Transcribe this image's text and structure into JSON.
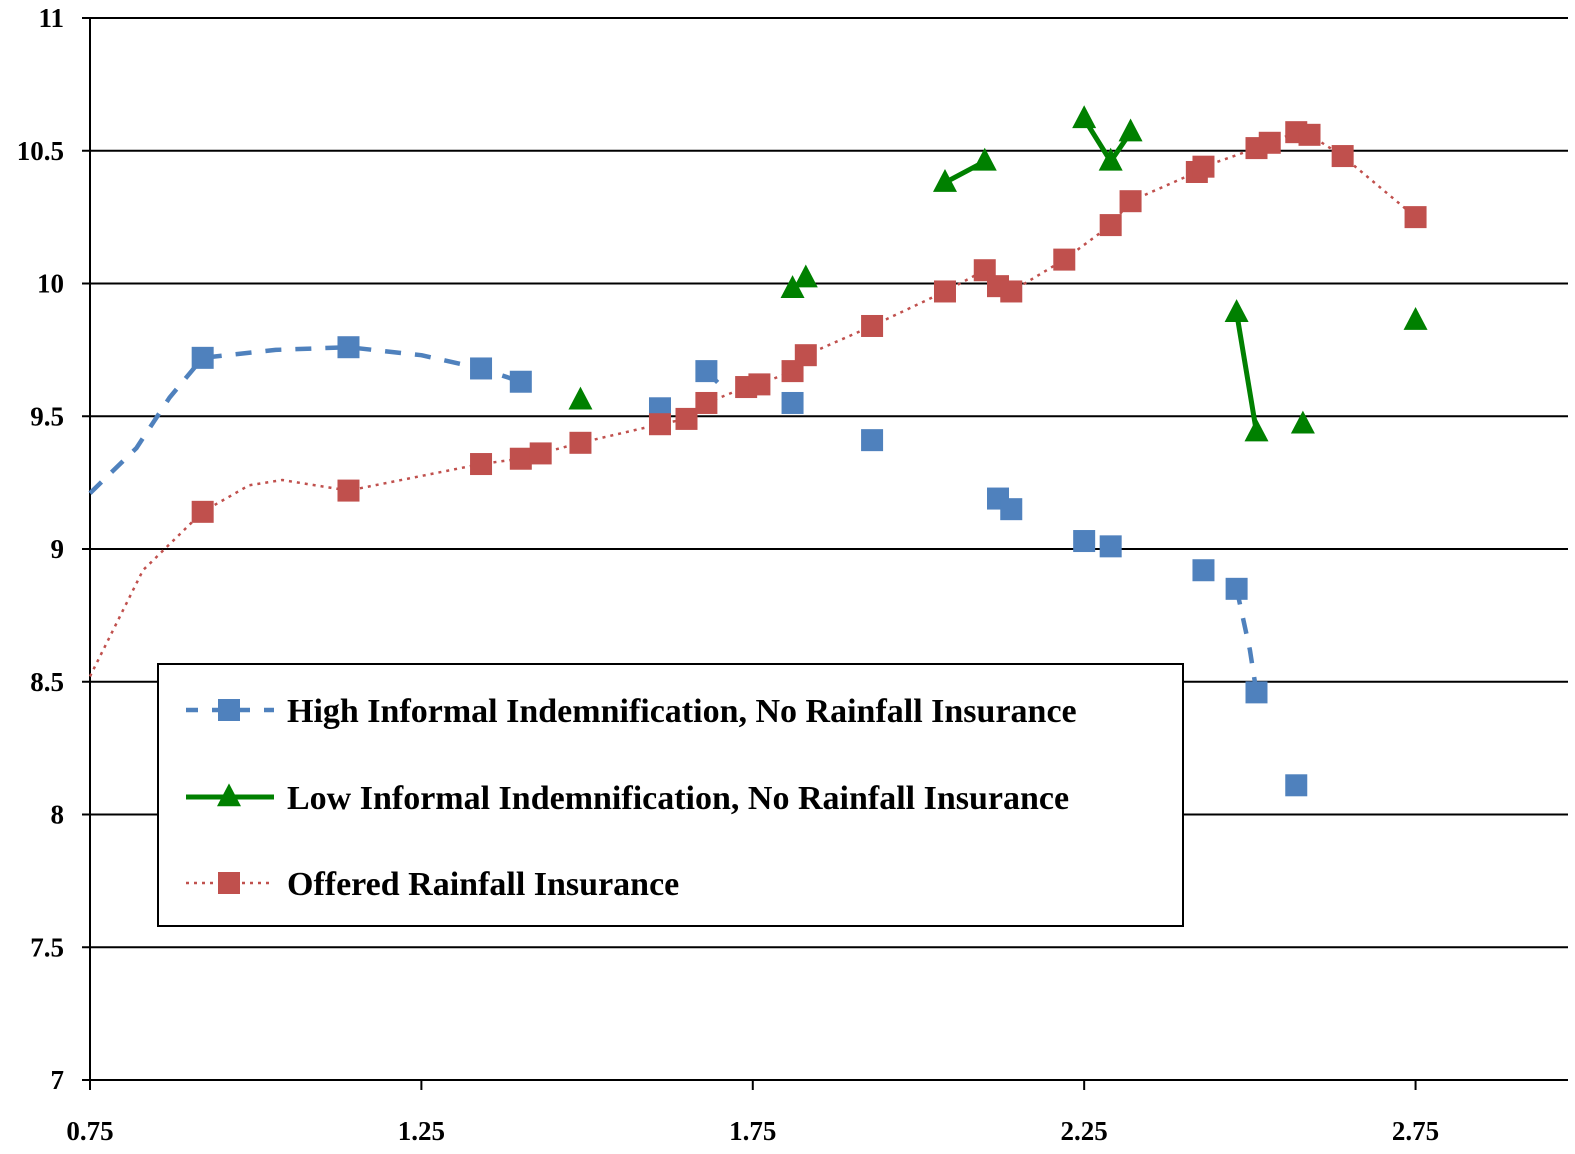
{
  "chart_data": {
    "type": "scatter",
    "title": "",
    "xlabel": "",
    "ylabel": "",
    "xlim": [
      0.75,
      2.98
    ],
    "ylim": [
      7,
      11
    ],
    "x_ticks": [
      0.75,
      1.25,
      1.75,
      2.25,
      2.75
    ],
    "x_tick_labels": [
      "0.75",
      "1.25",
      "1.75",
      "2.25",
      "2.75"
    ],
    "y_ticks": [
      7,
      7.5,
      8,
      8.5,
      9,
      9.5,
      10,
      10.5,
      11
    ],
    "y_tick_labels": [
      "7",
      "7.5",
      "8",
      "8.5",
      "9",
      "9.5",
      "10",
      "10.5",
      "11"
    ],
    "grid": "horizontal",
    "legend_position": "lower-left",
    "series": [
      {
        "name": "High Informal Indemnification, No Rainfall Insurance",
        "marker": "square",
        "line_style": "dashed",
        "color": "#4F81BD",
        "points": [
          [
            0.92,
            9.72
          ],
          [
            1.14,
            9.76
          ],
          [
            1.34,
            9.68
          ],
          [
            1.4,
            9.63
          ],
          [
            1.61,
            9.53
          ],
          [
            1.68,
            9.67
          ],
          [
            1.81,
            9.55
          ],
          [
            1.93,
            9.41
          ],
          [
            2.12,
            9.19
          ],
          [
            2.14,
            9.15
          ],
          [
            2.25,
            9.03
          ],
          [
            2.29,
            9.01
          ],
          [
            2.43,
            8.92
          ],
          [
            2.48,
            8.85
          ],
          [
            2.51,
            8.46
          ],
          [
            2.57,
            8.11
          ]
        ],
        "segments": [
          [
            [
              0.75,
              9.21
            ],
            [
              0.82,
              9.38
            ],
            [
              0.87,
              9.57
            ],
            [
              0.92,
              9.72
            ],
            [
              1.03,
              9.75
            ],
            [
              1.14,
              9.76
            ],
            [
              1.25,
              9.73
            ],
            [
              1.34,
              9.68
            ],
            [
              1.4,
              9.63
            ]
          ],
          [
            [
              1.68,
              9.67
            ],
            [
              1.7,
              9.62
            ]
          ],
          [
            [
              2.48,
              8.85
            ],
            [
              2.5,
              8.62
            ],
            [
              2.51,
              8.46
            ]
          ]
        ]
      },
      {
        "name": "Low Informal Indemnification, No Rainfall Insurance",
        "marker": "triangle",
        "line_style": "solid",
        "color": "#008000",
        "points": [
          [
            1.49,
            9.56
          ],
          [
            1.81,
            9.98
          ],
          [
            1.83,
            10.02
          ],
          [
            2.04,
            10.38
          ],
          [
            2.1,
            10.46
          ],
          [
            2.25,
            10.62
          ],
          [
            2.29,
            10.46
          ],
          [
            2.32,
            10.57
          ],
          [
            2.48,
            9.89
          ],
          [
            2.51,
            9.44
          ],
          [
            2.58,
            9.47
          ],
          [
            2.75,
            9.86
          ]
        ],
        "segments": [
          [
            [
              2.04,
              10.38
            ],
            [
              2.1,
              10.46
            ]
          ],
          [
            [
              2.25,
              10.62
            ],
            [
              2.29,
              10.46
            ],
            [
              2.32,
              10.57
            ]
          ],
          [
            [
              2.48,
              9.89
            ],
            [
              2.51,
              9.44
            ]
          ]
        ]
      },
      {
        "name": "Offered Rainfall Insurance",
        "marker": "square",
        "line_style": "dotted",
        "color": "#C0504D",
        "points": [
          [
            0.92,
            9.14
          ],
          [
            1.14,
            9.22
          ],
          [
            1.34,
            9.32
          ],
          [
            1.4,
            9.34
          ],
          [
            1.43,
            9.36
          ],
          [
            1.49,
            9.4
          ],
          [
            1.61,
            9.47
          ],
          [
            1.65,
            9.49
          ],
          [
            1.68,
            9.55
          ],
          [
            1.74,
            9.61
          ],
          [
            1.76,
            9.62
          ],
          [
            1.81,
            9.67
          ],
          [
            1.83,
            9.73
          ],
          [
            1.93,
            9.84
          ],
          [
            2.04,
            9.97
          ],
          [
            2.1,
            10.05
          ],
          [
            2.12,
            9.99
          ],
          [
            2.14,
            9.97
          ],
          [
            2.22,
            10.09
          ],
          [
            2.29,
            10.22
          ],
          [
            2.32,
            10.31
          ],
          [
            2.42,
            10.42
          ],
          [
            2.43,
            10.44
          ],
          [
            2.51,
            10.51
          ],
          [
            2.53,
            10.53
          ],
          [
            2.57,
            10.57
          ],
          [
            2.59,
            10.56
          ],
          [
            2.64,
            10.48
          ],
          [
            2.75,
            10.25
          ]
        ],
        "segments": [
          [
            [
              0.75,
              8.52
            ],
            [
              0.83,
              8.92
            ],
            [
              0.92,
              9.14
            ],
            [
              0.99,
              9.24
            ],
            [
              1.04,
              9.26
            ],
            [
              1.14,
              9.22
            ],
            [
              1.34,
              9.32
            ],
            [
              1.4,
              9.34
            ],
            [
              1.43,
              9.36
            ],
            [
              1.49,
              9.4
            ],
            [
              1.61,
              9.47
            ],
            [
              1.65,
              9.49
            ],
            [
              1.68,
              9.55
            ],
            [
              1.74,
              9.61
            ],
            [
              1.76,
              9.62
            ],
            [
              1.81,
              9.67
            ],
            [
              1.83,
              9.73
            ],
            [
              1.93,
              9.84
            ],
            [
              2.04,
              9.97
            ],
            [
              2.1,
              10.05
            ],
            [
              2.12,
              9.99
            ],
            [
              2.14,
              9.97
            ],
            [
              2.22,
              10.09
            ],
            [
              2.29,
              10.22
            ],
            [
              2.32,
              10.31
            ],
            [
              2.42,
              10.42
            ],
            [
              2.43,
              10.44
            ],
            [
              2.51,
              10.51
            ],
            [
              2.53,
              10.53
            ],
            [
              2.57,
              10.57
            ],
            [
              2.59,
              10.56
            ],
            [
              2.64,
              10.48
            ],
            [
              2.75,
              10.25
            ]
          ]
        ]
      }
    ]
  }
}
